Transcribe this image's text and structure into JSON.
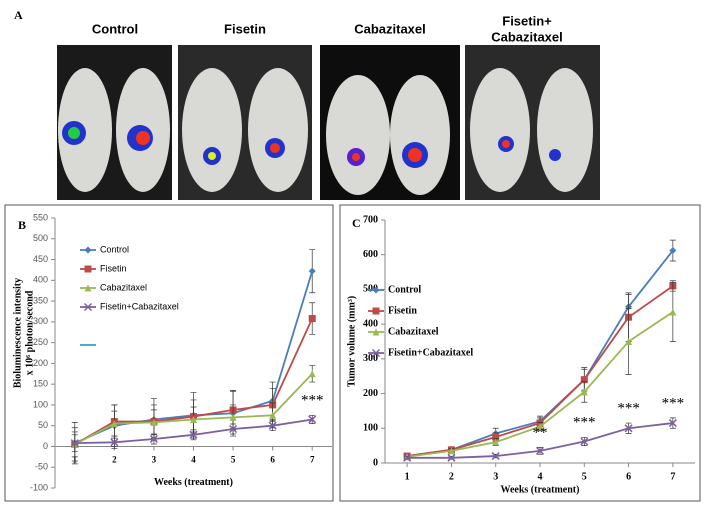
{
  "panel_a": {
    "label": "A",
    "groups": [
      [
        "Control"
      ],
      [
        "Fisetin"
      ],
      [
        "Cabazitaxel"
      ],
      [
        "Fisetin+",
        "Cabazitaxel"
      ]
    ]
  },
  "chart_data": [
    {
      "type": "line",
      "label": "B",
      "xlabel": "Weeks (treatment)",
      "ylabel": [
        "Bioluminescence intensity",
        "x 10⁶ photon/second"
      ],
      "x": [
        1,
        2,
        3,
        4,
        5,
        6,
        7
      ],
      "xlim": [
        0.5,
        7.5
      ],
      "xticks": [
        1,
        2,
        3,
        4,
        5,
        6,
        7
      ],
      "ylim": [
        -100,
        550
      ],
      "yticks": [
        -100,
        -50,
        0,
        50,
        100,
        150,
        200,
        250,
        300,
        350,
        400,
        450,
        500,
        550
      ],
      "series": [
        {
          "name": "Control",
          "color": "#4a7ebb",
          "marker": "diamond",
          "values": [
            8,
            50,
            65,
            75,
            80,
            110,
            422
          ],
          "errors": [
            50,
            50,
            50,
            55,
            55,
            45,
            52
          ]
        },
        {
          "name": "Fisetin",
          "color": "#be4b48",
          "marker": "square",
          "values": [
            5,
            60,
            60,
            72,
            88,
            100,
            308
          ],
          "errors": [
            40,
            40,
            40,
            40,
            45,
            40,
            38
          ]
        },
        {
          "name": "Cabazitaxel",
          "color": "#98b954",
          "marker": "triangle",
          "values": [
            5,
            55,
            58,
            65,
            70,
            75,
            175
          ],
          "errors": [
            30,
            30,
            30,
            30,
            30,
            30,
            20
          ]
        },
        {
          "name": "Fisetin+Cabazitaxel",
          "color": "#7d60a0",
          "marker": "x",
          "values": [
            8,
            10,
            18,
            28,
            42,
            50,
            65
          ],
          "errors": [
            20,
            15,
            12,
            12,
            12,
            12,
            10
          ]
        }
      ],
      "annotations": [
        {
          "x": 7,
          "text": "***"
        }
      ]
    },
    {
      "type": "line",
      "label": "C",
      "xlabel": "Weeks (treatment)",
      "ylabel": [
        "Tumor volume (mm³)"
      ],
      "x": [
        1,
        2,
        3,
        4,
        5,
        6,
        7
      ],
      "xlim": [
        0.5,
        7.5
      ],
      "xticks": [
        1,
        2,
        3,
        4,
        5,
        6,
        7
      ],
      "ylim": [
        0,
        700
      ],
      "yticks": [
        0,
        100,
        200,
        300,
        400,
        500,
        600,
        700
      ],
      "series": [
        {
          "name": "Control",
          "color": "#4a7ebb",
          "marker": "diamond",
          "values": [
            20,
            38,
            85,
            120,
            240,
            450,
            612
          ],
          "errors": [
            5,
            6,
            15,
            15,
            35,
            35,
            30
          ]
        },
        {
          "name": "Fisetin",
          "color": "#be4b48",
          "marker": "square",
          "values": [
            20,
            38,
            75,
            115,
            240,
            420,
            510
          ],
          "errors": [
            5,
            6,
            12,
            15,
            30,
            70,
            15
          ]
        },
        {
          "name": "Cabazitaxel",
          "color": "#98b954",
          "marker": "triangle",
          "values": [
            18,
            35,
            60,
            105,
            205,
            350,
            435
          ],
          "errors": [
            5,
            6,
            10,
            12,
            30,
            95,
            85
          ]
        },
        {
          "name": "Fisetin+Cabazitaxel",
          "color": "#7d60a0",
          "marker": "x",
          "values": [
            15,
            15,
            20,
            35,
            62,
            100,
            115
          ],
          "errors": [
            4,
            4,
            5,
            10,
            12,
            15,
            15
          ]
        }
      ],
      "annotations": [
        {
          "x": 4,
          "text": "**"
        },
        {
          "x": 5,
          "text": "***"
        },
        {
          "x": 6,
          "text": "***"
        },
        {
          "x": 7,
          "text": "***"
        }
      ]
    }
  ]
}
